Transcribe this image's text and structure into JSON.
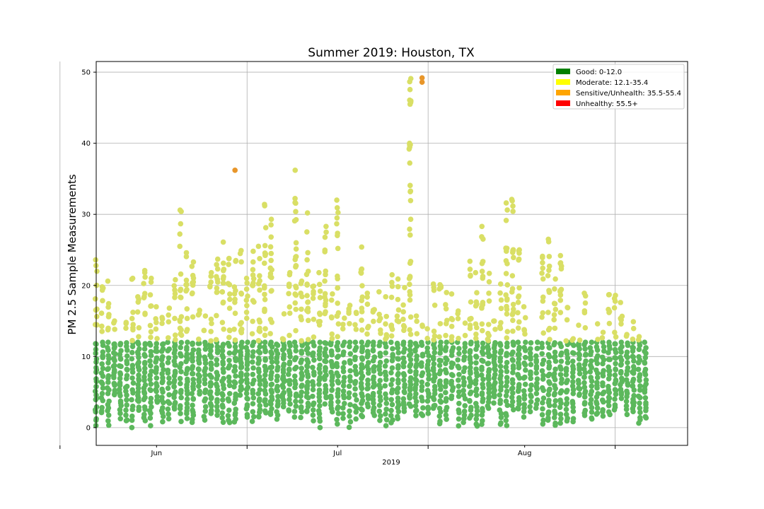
{
  "chart_data": {
    "type": "scatter",
    "title": "Summer 2019: Houston, TX",
    "xlabel": "",
    "ylabel": "PM 2.5 Sample Measurements",
    "x_range": [
      "2019-05-22",
      "2019-08-28"
    ],
    "ylim": [
      -2.5,
      51.5
    ],
    "y_ticks": [
      0,
      10,
      20,
      30,
      40,
      50
    ],
    "x_ticks": [
      {
        "date": "2019-06-01",
        "label": "Jun"
      },
      {
        "date": "2019-07-01",
        "label": "Jul"
      },
      {
        "date": "2019-08-01",
        "label": "Aug"
      }
    ],
    "x_year_label": "2019",
    "grid": true,
    "legend_position": "top-right",
    "legend": [
      {
        "label": "Good: 0-12.0",
        "color": "#008000"
      },
      {
        "label": "Moderate: 12.1-35.4",
        "color": "#ffff00"
      },
      {
        "label": "Sensitive/Unhealth: 35.5-55.4",
        "color": "#ffa500"
      },
      {
        "label": "Unhealthy: 55.5+",
        "color": "#ff0000"
      }
    ],
    "point_colors": {
      "good": "#5cb85c",
      "moderate": "#d9df65",
      "sensitive": "#e8962a"
    },
    "date_range": [
      "2019-05-22",
      "2019-08-22"
    ],
    "daily_peaks": [
      23.6,
      19.8,
      20.6,
      15.0,
      12.0,
      14.8,
      21.0,
      18.4,
      22.1,
      21.0,
      17.0,
      15.5,
      16.8,
      20.8,
      30.6,
      24.6,
      23.3,
      16.5,
      15.7,
      21.8,
      23.7,
      26.1,
      23.8,
      23.5,
      24.9,
      21.0,
      24.8,
      25.5,
      31.4,
      29.3,
      12.0,
      16.0,
      21.8,
      36.2,
      20.6,
      30.2,
      19.9,
      21.8,
      28.3,
      18.8,
      32.0,
      15.4,
      17.2,
      16.2,
      25.4,
      18.9,
      16.6,
      19.1,
      18.4,
      21.5,
      20.9,
      19.7,
      49.1,
      15.7,
      14.4,
      13.9,
      20.2,
      20.1,
      19.0,
      18.8,
      16.4,
      14.7,
      23.4,
      21.8,
      28.3,
      21.7,
      15.0,
      20.2,
      31.6,
      32.1,
      25.0,
      17.0,
      12.0,
      12.0,
      24.1,
      26.5,
      20.9,
      24.2,
      16.9,
      12.5,
      14.4,
      18.9,
      12.0,
      14.6,
      13.4,
      18.7,
      18.6,
      17.6,
      13.1,
      14.9,
      12.8,
      12.0
    ],
    "outliers": [
      {
        "x": "2019-06-14",
        "y": 36.2
      },
      {
        "x": "2019-07-15",
        "y": 49.2
      },
      {
        "x": "2019-07-15",
        "y": 48.6
      }
    ]
  }
}
